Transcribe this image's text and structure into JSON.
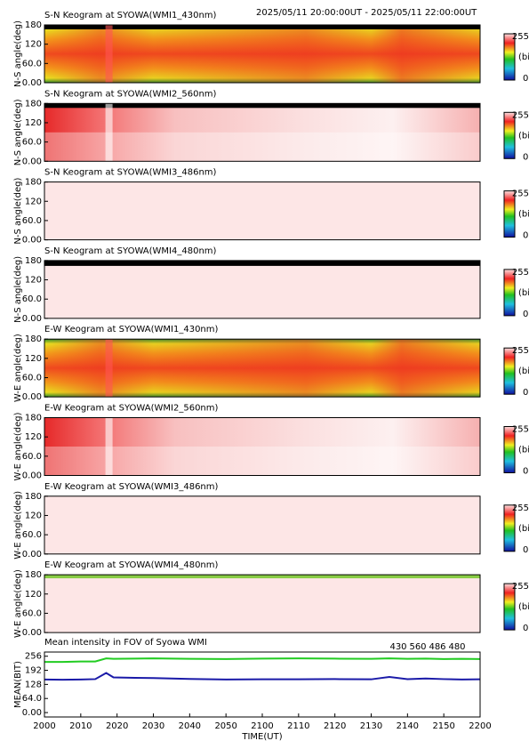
{
  "header": {
    "range": "2025/05/11 20:00:00UT - 2025/05/11 22:00:00UT"
  },
  "keograms": [
    {
      "title": "S-N Keogram at SYOWA(WMI1_430nm)",
      "ylabel": "N-S angle(deg)"
    },
    {
      "title": "S-N Keogram at SYOWA(WMI2_560nm)",
      "ylabel": "N-S angle(deg)"
    },
    {
      "title": "S-N Keogram at SYOWA(WMI3_486nm)",
      "ylabel": "N-S angle(deg)"
    },
    {
      "title": "S-N Keogram at SYOWA(WMI4_480nm)",
      "ylabel": "N-S angle(deg)"
    },
    {
      "title": "E-W Keogram at SYOWA(WMI1_430nm)",
      "ylabel": "W-E angle(deg)"
    },
    {
      "title": "E-W Keogram at SYOWA(WMI2_560nm)",
      "ylabel": "W-E angle(deg)"
    },
    {
      "title": "E-W Keogram at SYOWA(WMI3_486nm)",
      "ylabel": "W-E angle(deg)"
    },
    {
      "title": "E-W Keogram at SYOWA(WMI4_480nm)",
      "ylabel": "W-E angle(deg)"
    }
  ],
  "keogram_axis": {
    "ylim": [
      0,
      180
    ],
    "yticks": [
      {
        "value": 0,
        "label": "0.00"
      },
      {
        "value": 60,
        "label": "60.0"
      },
      120,
      180
    ]
  },
  "colorbar": {
    "max": 255,
    "unit": "(bit)",
    "min": 0
  },
  "chart_data": {
    "type": "line",
    "title": "Mean intensity in FOV of Syowa WMI",
    "x_label": "TIME(UT)",
    "y_label": "MEAN(BIT)",
    "x": [
      0,
      5,
      10,
      14,
      17,
      19,
      25,
      30,
      40,
      50,
      60,
      70,
      80,
      90,
      95,
      100,
      105,
      110,
      115,
      120
    ],
    "series": [
      {
        "name": "430",
        "color": "#1a1aa8",
        "values": [
          150,
          149,
          150,
          152,
          180,
          160,
          158,
          157,
          153,
          150,
          151,
          151,
          152,
          151,
          162,
          152,
          155,
          152,
          150,
          151
        ]
      },
      {
        "name": "560",
        "color": "#22cc22",
        "values": [
          230,
          230,
          232,
          232,
          246,
          244,
          245,
          246,
          244,
          243,
          245,
          246,
          245,
          244,
          246,
          244,
          245,
          243,
          244,
          243
        ]
      },
      {
        "name": "486",
        "color": "#cc2222",
        "values": [
          null,
          null,
          null,
          null,
          null,
          null,
          null,
          null,
          null,
          null,
          null,
          null,
          null,
          null,
          null,
          null,
          null,
          null,
          null,
          null
        ]
      },
      {
        "name": "480",
        "color": "#000000",
        "values": [
          null,
          null,
          null,
          null,
          null,
          null,
          null,
          null,
          null,
          null,
          null,
          null,
          null,
          null,
          null,
          null,
          null,
          null,
          null,
          null
        ]
      }
    ],
    "xlim": [
      0,
      120
    ],
    "xticks": [
      {
        "value": 0,
        "label": "2000"
      },
      {
        "value": 10,
        "label": "2010"
      },
      {
        "value": 20,
        "label": "2020"
      },
      {
        "value": 30,
        "label": "2030"
      },
      {
        "value": 40,
        "label": "2040"
      },
      {
        "value": 50,
        "label": "2050"
      },
      {
        "value": 60,
        "label": "2100"
      },
      {
        "value": 70,
        "label": "2110"
      },
      {
        "value": 80,
        "label": "2120"
      },
      {
        "value": 90,
        "label": "2130"
      },
      {
        "value": 100,
        "label": "2140"
      },
      {
        "value": 110,
        "label": "2150"
      },
      {
        "value": 120,
        "label": "2200"
      }
    ],
    "ylim": [
      -20,
      275
    ],
    "yticks": [
      {
        "value": 0,
        "label": "0.00"
      },
      {
        "value": 64,
        "label": "64.0"
      },
      128,
      192,
      256
    ]
  }
}
